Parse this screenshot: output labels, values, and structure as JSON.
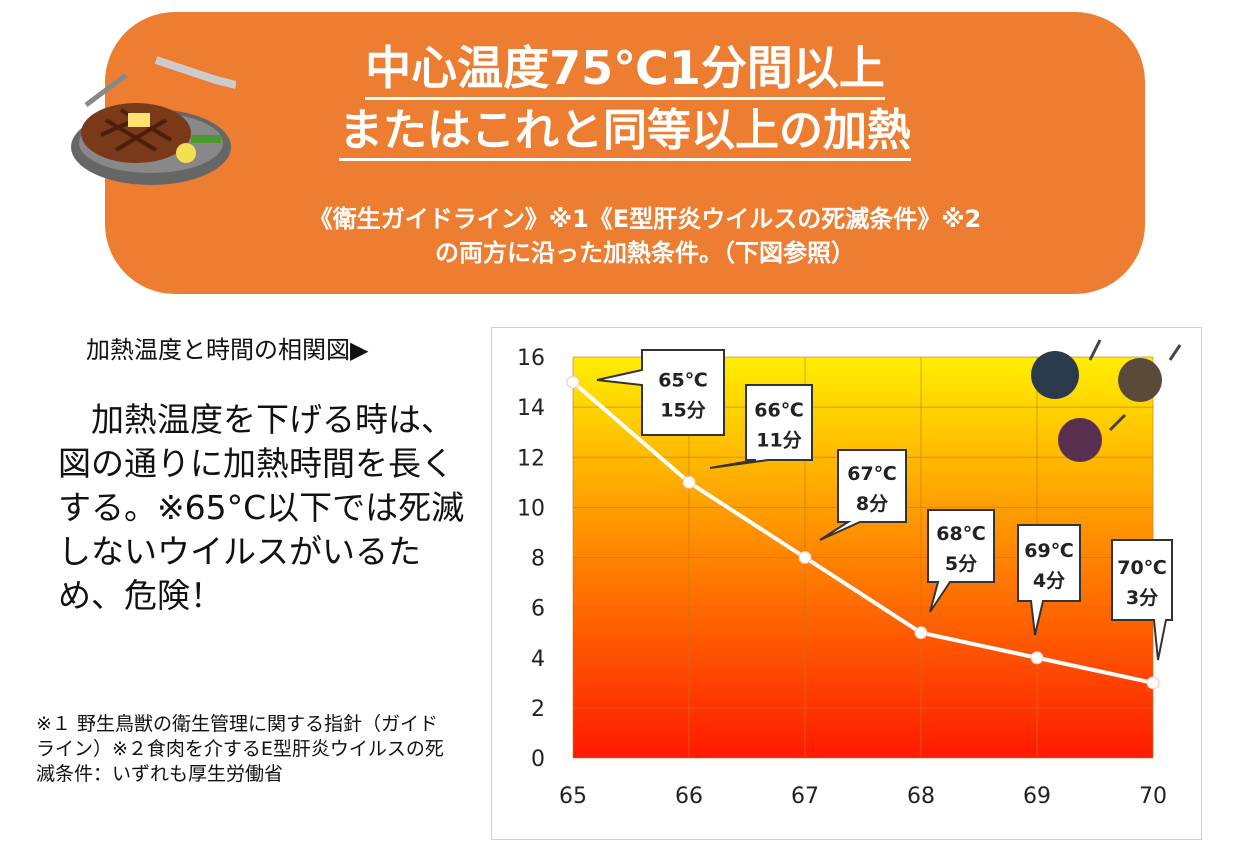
{
  "banner": {
    "title_line1": "中心温度75℃1分間以上",
    "title_line2": "またはこれと同等以上の加熱",
    "subtitle_line1": "《衛生ガイドライン》※1《E型肝炎ウイルスの死滅条件》※2",
    "subtitle_line2": "の両方に沿った加熱条件。（下図参照）"
  },
  "left": {
    "caption": "加熱温度と時間の相関図▶",
    "main_text": "　加熱温度を下げる時は、図の通りに加熱時間を長くする。※65°C以下では死滅しないウイルスがいるため、危険！",
    "footnote": "※１ 野生鳥獣の衛生管理に関する指針（ガイドライン）※２食肉を介するE型肝炎ウイルスの死滅条件：いずれも厚生労働省"
  },
  "chart_data": {
    "type": "line",
    "x": [
      65,
      66,
      67,
      68,
      69,
      70
    ],
    "values": [
      15,
      11,
      8,
      5,
      4,
      3
    ],
    "xlim": [
      65,
      70
    ],
    "ylim": [
      0,
      16
    ],
    "yticks": [
      0,
      2,
      4,
      6,
      8,
      10,
      12,
      14,
      16
    ],
    "xticks": [
      65,
      66,
      67,
      68,
      69,
      70
    ],
    "grid": true,
    "annotations": [
      {
        "temp": "65℃",
        "time": "15分"
      },
      {
        "temp": "66℃",
        "time": "11分"
      },
      {
        "temp": "67℃",
        "time": "8分"
      },
      {
        "temp": "68℃",
        "time": "5分"
      },
      {
        "temp": "69℃",
        "time": "4分"
      },
      {
        "temp": "70℃",
        "time": "3分"
      }
    ],
    "colors": {
      "top": "#ffee00",
      "bottom": "#ff1a00",
      "line": "#ffffff"
    }
  }
}
